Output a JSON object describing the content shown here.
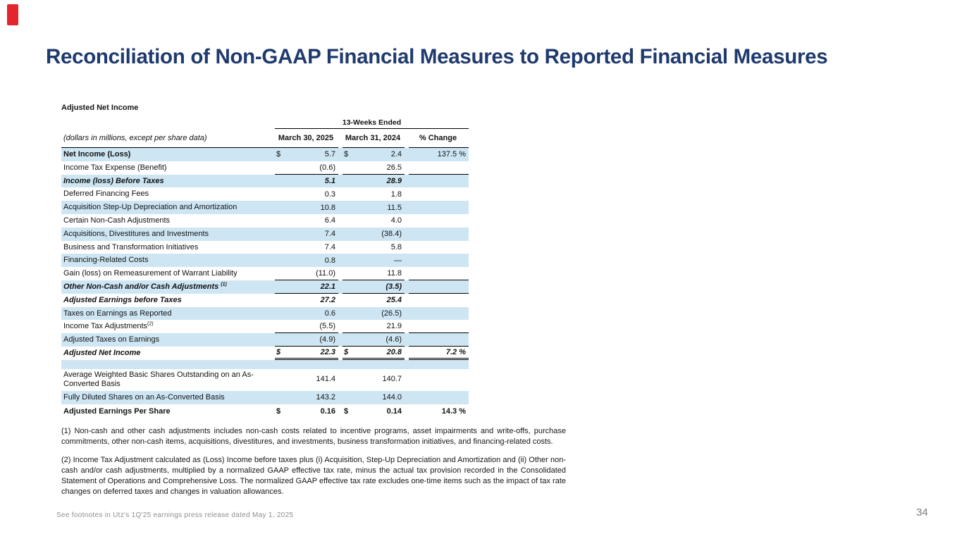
{
  "slide": {
    "title": "Reconciliation of Non-GAAP Financial Measures to Reported Financial Measures",
    "footer": "See footnotes in Utz's 1Q'25 earnings press release dated May 1, 2025",
    "page_number": "34"
  },
  "colors": {
    "accent_navy": "#1f3a6e",
    "row_shade": "#cee6f4",
    "corner_red": "#e5242d",
    "footer_gray": "#8f8f8f"
  },
  "table": {
    "section_label": "Adjusted Net Income",
    "period_header": "13-Weeks Ended",
    "row_label_note": "(dollars in millions, except per share data)",
    "columns": [
      "March 30, 2025",
      "March 31, 2024",
      "% Change"
    ],
    "rows": [
      {
        "label": "Net Income (Loss)",
        "d1": "$",
        "v1": "5.7",
        "d2": "$",
        "v2": "2.4",
        "v3": "137.5 %",
        "shade": true,
        "style": "bL",
        "rule": ""
      },
      {
        "label": "Income Tax Expense (Benefit)",
        "v1": "(0.6)",
        "v2": "26.5",
        "v3": "",
        "shade": false,
        "style": "",
        "rule": "s"
      },
      {
        "label": "Income (loss) Before Taxes",
        "v1": "5.1",
        "v2": "28.9",
        "v3": "",
        "shade": true,
        "style": "bi",
        "rule": ""
      },
      {
        "label": "Deferred Financing Fees",
        "v1": "0.3",
        "v2": "1.8",
        "v3": "",
        "shade": false,
        "style": "",
        "rule": ""
      },
      {
        "label": "Acquisition Step-Up Depreciation and Amortization",
        "v1": "10.8",
        "v2": "11.5",
        "v3": "",
        "shade": true,
        "style": "",
        "rule": ""
      },
      {
        "label": "Certain Non-Cash Adjustments",
        "v1": "6.4",
        "v2": "4.0",
        "v3": "",
        "shade": false,
        "style": "",
        "rule": ""
      },
      {
        "label": "Acquisitions, Divestitures and Investments",
        "v1": "7.4",
        "v2": "(38.4)",
        "v3": "",
        "shade": true,
        "style": "",
        "rule": ""
      },
      {
        "label": "Business and Transformation Initiatives",
        "v1": "7.4",
        "v2": "5.8",
        "v3": "",
        "shade": false,
        "style": "",
        "rule": ""
      },
      {
        "label": "Financing-Related Costs",
        "v1": "0.8",
        "v2": "—",
        "v3": "",
        "shade": true,
        "style": "",
        "rule": ""
      },
      {
        "label": "Gain (loss) on Remeasurement of Warrant Liability",
        "v1": "(11.0)",
        "v2": "11.8",
        "v3": "",
        "shade": false,
        "style": "",
        "rule": "s"
      },
      {
        "label": "Other Non-Cash and/or Cash Adjustments ",
        "sup": "(1)",
        "v1": "22.1",
        "v2": "(3.5)",
        "v3": "",
        "shade": true,
        "style": "bi",
        "rule": "s"
      },
      {
        "label": "Adjusted Earnings before Taxes",
        "v1": "27.2",
        "v2": "25.4",
        "v3": "",
        "shade": false,
        "style": "bi",
        "rule": ""
      },
      {
        "label": "Taxes on Earnings as Reported",
        "v1": "0.6",
        "v2": "(26.5)",
        "v3": "",
        "shade": true,
        "style": "",
        "rule": ""
      },
      {
        "label": "Income Tax Adjustments",
        "sup": "(2)",
        "v1": "(5.5)",
        "v2": "21.9",
        "v3": "",
        "shade": false,
        "style": "",
        "rule": "s"
      },
      {
        "label": "Adjusted Taxes on Earnings",
        "v1": "(4.9)",
        "v2": "(4.6)",
        "v3": "",
        "shade": true,
        "style": "",
        "rule": "s"
      },
      {
        "label": "Adjusted Net Income",
        "d1": "$",
        "v1": "22.3",
        "d2": "$",
        "v2": "20.8",
        "v3": "7.2 %",
        "shade": false,
        "style": "bi",
        "rule": "d"
      },
      {
        "label": "",
        "v1": "",
        "v2": "",
        "v3": "",
        "shade": true,
        "style": "",
        "rule": "",
        "kind": "spacer"
      },
      {
        "label": "Average Weighted Basic Shares Outstanding on an As-Converted Basis",
        "v1": "141.4",
        "v2": "140.7",
        "v3": "",
        "shade": false,
        "style": "",
        "rule": "",
        "kind": "tall"
      },
      {
        "label": "Fully Diluted Shares on an As-Converted Basis",
        "v1": "143.2",
        "v2": "144.0",
        "v3": "",
        "shade": true,
        "style": "",
        "rule": ""
      },
      {
        "label": "Adjusted Earnings Per Share",
        "d1": "$",
        "v1": "0.16",
        "d2": "$",
        "v2": "0.14",
        "v3": "14.3 %",
        "shade": false,
        "style": "b",
        "rule": "",
        "kind": "eps"
      }
    ]
  },
  "footnotes": [
    "(1)  Non-cash and other cash adjustments includes non-cash costs related to incentive programs, asset impairments and write-offs, purchase commitments, other non-cash items, acquisitions, divestitures, and investments, business transformation initiatives, and financing-related costs.",
    "(2) Income Tax Adjustment calculated as (Loss) Income before taxes plus (i) Acquisition, Step-Up Depreciation and Amortization and (ii) Other non-cash and/or cash adjustments, multiplied by a normalized GAAP effective tax rate, minus the actual tax provision recorded in the Consolidated Statement of Operations and Comprehensive Loss. The normalized GAAP effective tax rate excludes one-time items such as the impact of tax rate changes on deferred taxes and changes in valuation allowances."
  ]
}
